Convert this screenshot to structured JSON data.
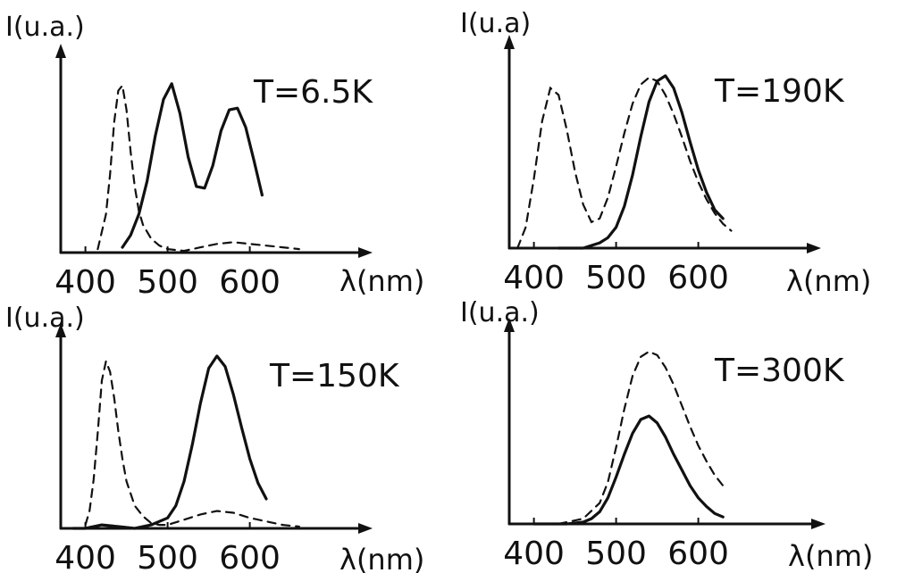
{
  "chart_data": [
    {
      "type": "line",
      "temperature_label": "T=6.5K",
      "xlabel": "λ(nm)",
      "ylabel": "I(u.a.)",
      "x_ticks": [
        400,
        500,
        600
      ],
      "xlim": [
        370,
        670
      ],
      "ylim": [
        0,
        1.0
      ],
      "series": [
        {
          "style": "solid",
          "x": [
            445,
            455,
            465,
            475,
            485,
            495,
            505,
            515,
            525,
            535,
            545,
            555,
            565,
            575,
            585,
            595,
            605,
            615
          ],
          "y": [
            0.03,
            0.1,
            0.22,
            0.41,
            0.67,
            0.88,
            0.97,
            0.8,
            0.55,
            0.38,
            0.37,
            0.5,
            0.7,
            0.82,
            0.83,
            0.72,
            0.53,
            0.33
          ]
        },
        {
          "style": "dashed",
          "x": [
            415,
            425,
            430,
            435,
            440,
            445,
            450,
            455,
            460,
            465,
            470,
            480,
            490,
            500,
            520,
            540,
            560,
            580,
            600,
            620,
            640,
            660
          ],
          "y": [
            0.02,
            0.22,
            0.45,
            0.75,
            0.93,
            0.96,
            0.82,
            0.58,
            0.38,
            0.24,
            0.16,
            0.08,
            0.04,
            0.02,
            0.01,
            0.03,
            0.05,
            0.06,
            0.05,
            0.04,
            0.03,
            0.02
          ]
        }
      ]
    },
    {
      "type": "line",
      "temperature_label": "T=190K",
      "xlabel": "λ(nm)",
      "ylabel": "I(u.a)",
      "x_ticks": [
        400,
        500,
        600
      ],
      "xlim": [
        370,
        670
      ],
      "ylim": [
        0,
        1.0
      ],
      "series": [
        {
          "style": "solid",
          "x": [
            430,
            460,
            480,
            490,
            500,
            510,
            520,
            530,
            540,
            550,
            560,
            570,
            580,
            590,
            600,
            610,
            620,
            630
          ],
          "y": [
            0.0,
            0.0,
            0.03,
            0.06,
            0.12,
            0.24,
            0.42,
            0.64,
            0.84,
            0.96,
            0.99,
            0.92,
            0.78,
            0.61,
            0.45,
            0.32,
            0.22,
            0.17
          ]
        },
        {
          "style": "dashed",
          "x": [
            380,
            390,
            400,
            410,
            420,
            430,
            440,
            450,
            460,
            470,
            480,
            490,
            500,
            510,
            520,
            530,
            540,
            550,
            560,
            570,
            580,
            590,
            600,
            610,
            620,
            630,
            640
          ],
          "y": [
            0.0,
            0.12,
            0.4,
            0.73,
            0.92,
            0.88,
            0.68,
            0.44,
            0.25,
            0.15,
            0.17,
            0.29,
            0.47,
            0.66,
            0.83,
            0.94,
            0.98,
            0.96,
            0.88,
            0.77,
            0.64,
            0.5,
            0.38,
            0.28,
            0.2,
            0.14,
            0.1
          ]
        }
      ]
    },
    {
      "type": "line",
      "temperature_label": "T=150K",
      "xlabel": "λ(nm)",
      "ylabel": "I(u.a.)",
      "x_ticks": [
        400,
        500,
        600
      ],
      "xlim": [
        370,
        670
      ],
      "ylim": [
        0,
        1.0
      ],
      "series": [
        {
          "style": "solid",
          "x": [
            385,
            400,
            420,
            440,
            460,
            480,
            500,
            510,
            520,
            530,
            540,
            550,
            560,
            570,
            580,
            590,
            600,
            610,
            620
          ],
          "y": [
            0.0,
            0.0,
            0.02,
            0.01,
            0.0,
            0.02,
            0.06,
            0.13,
            0.27,
            0.48,
            0.72,
            0.92,
            0.99,
            0.93,
            0.77,
            0.58,
            0.4,
            0.26,
            0.17
          ]
        },
        {
          "style": "dashed",
          "x": [
            400,
            405,
            410,
            415,
            420,
            425,
            430,
            435,
            440,
            445,
            450,
            460,
            470,
            480,
            490,
            500,
            520,
            540,
            560,
            580,
            600,
            620,
            640,
            660
          ],
          "y": [
            0.02,
            0.1,
            0.28,
            0.55,
            0.85,
            0.96,
            0.9,
            0.75,
            0.56,
            0.4,
            0.27,
            0.13,
            0.07,
            0.03,
            0.02,
            0.02,
            0.05,
            0.08,
            0.1,
            0.09,
            0.06,
            0.04,
            0.02,
            0.01
          ]
        }
      ]
    },
    {
      "type": "line",
      "temperature_label": "T=300K",
      "xlabel": "λ(nm)",
      "ylabel": "I(u.a.)",
      "x_ticks": [
        400,
        500,
        600
      ],
      "xlim": [
        370,
        670
      ],
      "ylim": [
        0,
        1.0
      ],
      "series": [
        {
          "style": "solid",
          "x": [
            400,
            440,
            460,
            470,
            480,
            490,
            500,
            510,
            520,
            530,
            540,
            550,
            560,
            570,
            580,
            590,
            600,
            610,
            620,
            630
          ],
          "y": [
            0.0,
            0.0,
            0.01,
            0.03,
            0.07,
            0.15,
            0.27,
            0.4,
            0.52,
            0.6,
            0.62,
            0.58,
            0.5,
            0.4,
            0.31,
            0.22,
            0.15,
            0.1,
            0.06,
            0.04
          ]
        },
        {
          "style": "dashed",
          "x": [
            430,
            460,
            480,
            490,
            500,
            510,
            520,
            530,
            540,
            550,
            560,
            570,
            580,
            590,
            600,
            610,
            620,
            630
          ],
          "y": [
            0.0,
            0.03,
            0.12,
            0.24,
            0.44,
            0.66,
            0.85,
            0.96,
            0.99,
            0.97,
            0.9,
            0.8,
            0.68,
            0.56,
            0.45,
            0.36,
            0.28,
            0.22
          ]
        }
      ]
    }
  ]
}
